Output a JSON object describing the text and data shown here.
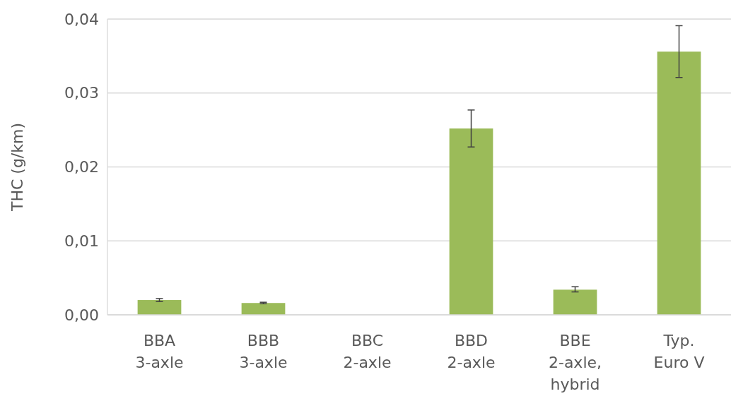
{
  "chart_data": {
    "type": "bar",
    "ylabel": "THC (g/km)",
    "categories": [
      "BBA\n3-axle",
      "BBB\n3-axle",
      "BBC\n2-axle",
      "BBD\n2-axle",
      "BBE\n2-axle,\nhybrid",
      "Typ.\nEuro V"
    ],
    "values": [
      0.002,
      0.0016,
      null,
      0.0252,
      0.0034,
      0.0356
    ],
    "errors": [
      [
        0.0018,
        0.0022
      ],
      [
        0.0015,
        0.0017
      ],
      null,
      [
        0.0227,
        0.0277
      ],
      [
        0.0031,
        0.0038
      ],
      [
        0.0321,
        0.0391
      ]
    ],
    "color": "#9bbb59",
    "ylim": [
      0,
      0.04
    ],
    "yticks": [
      {
        "value": 0,
        "label": "0,00"
      },
      {
        "value": 0.01,
        "label": "0,01"
      },
      {
        "value": 0.02,
        "label": "0,02"
      },
      {
        "value": 0.03,
        "label": "0,03"
      },
      {
        "value": 0.04,
        "label": "0,04"
      }
    ],
    "grid": "y"
  }
}
